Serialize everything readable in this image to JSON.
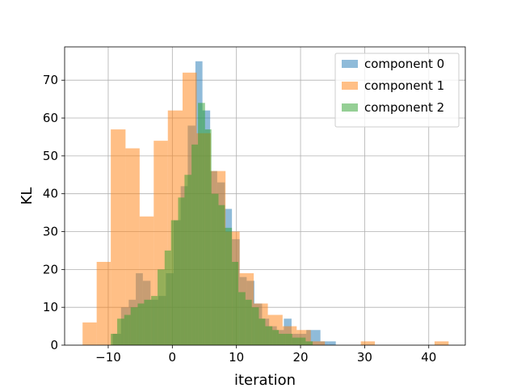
{
  "chart_data": {
    "type": "histogram",
    "xlabel": "iteration",
    "ylabel": "KL",
    "xlim": [
      -16.8,
      45.7
    ],
    "ylim": [
      0,
      78.8
    ],
    "xticks": [
      -10,
      0,
      10,
      20,
      30,
      40
    ],
    "xtick_labels": [
      "−10",
      "0",
      "10",
      "20",
      "30",
      "40"
    ],
    "yticks": [
      0,
      10,
      20,
      30,
      40,
      50,
      60,
      70
    ],
    "ytick_labels": [
      "0",
      "10",
      "20",
      "30",
      "40",
      "50",
      "60",
      "70"
    ],
    "grid": true,
    "legend_position": "top-right",
    "series": [
      {
        "name": "component 0",
        "color": "#1f77b4",
        "opacity": 0.5,
        "bins": [
          [
            -9.3,
            -8.0,
            3
          ],
          [
            -8.0,
            -6.8,
            10
          ],
          [
            -6.8,
            -5.7,
            12
          ],
          [
            -5.7,
            -4.6,
            19
          ],
          [
            -4.6,
            -3.4,
            17
          ],
          [
            -3.4,
            -2.2,
            12
          ],
          [
            -2.2,
            -1.0,
            13
          ],
          [
            -1.0,
            0.2,
            19
          ],
          [
            0.2,
            1.3,
            33
          ],
          [
            1.3,
            2.4,
            42
          ],
          [
            2.4,
            3.6,
            58
          ],
          [
            3.6,
            4.7,
            75
          ],
          [
            4.7,
            5.9,
            62
          ],
          [
            5.9,
            7.0,
            46
          ],
          [
            7.0,
            8.2,
            43
          ],
          [
            8.2,
            9.3,
            36
          ],
          [
            9.3,
            10.5,
            28
          ],
          [
            10.5,
            11.6,
            18
          ],
          [
            11.6,
            12.8,
            17
          ],
          [
            12.8,
            14.0,
            11
          ],
          [
            14.0,
            15.1,
            7
          ],
          [
            15.1,
            16.3,
            5
          ],
          [
            16.3,
            17.4,
            4
          ],
          [
            17.4,
            18.6,
            7
          ],
          [
            18.6,
            19.7,
            3
          ],
          [
            19.7,
            20.9,
            3
          ],
          [
            20.9,
            22.0,
            4
          ],
          [
            22.0,
            23.1,
            4
          ],
          [
            23.1,
            24.3,
            1
          ],
          [
            24.3,
            25.5,
            1
          ]
        ]
      },
      {
        "name": "component 1",
        "color": "#ff7f0e",
        "opacity": 0.5,
        "bins": [
          [
            -14.0,
            -11.8,
            6
          ],
          [
            -11.8,
            -9.6,
            22
          ],
          [
            -9.6,
            -7.3,
            57
          ],
          [
            -7.3,
            -5.1,
            52
          ],
          [
            -5.1,
            -2.9,
            34
          ],
          [
            -2.9,
            -0.7,
            54
          ],
          [
            -0.7,
            1.6,
            62
          ],
          [
            1.6,
            3.8,
            72
          ],
          [
            3.8,
            6.0,
            56
          ],
          [
            6.0,
            8.3,
            46
          ],
          [
            8.3,
            10.5,
            30
          ],
          [
            10.5,
            12.7,
            19
          ],
          [
            12.7,
            14.9,
            11
          ],
          [
            14.9,
            17.2,
            8
          ],
          [
            17.2,
            19.4,
            5
          ],
          [
            19.4,
            21.6,
            4
          ],
          [
            21.6,
            23.8,
            1
          ],
          [
            29.4,
            31.6,
            1
          ],
          [
            40.9,
            43.1,
            1
          ]
        ]
      },
      {
        "name": "component 2",
        "color": "#2ca02c",
        "opacity": 0.5,
        "bins": [
          [
            -9.6,
            -8.6,
            3
          ],
          [
            -8.6,
            -7.5,
            7
          ],
          [
            -7.5,
            -6.5,
            8
          ],
          [
            -6.5,
            -5.4,
            10
          ],
          [
            -5.4,
            -4.4,
            11
          ],
          [
            -4.4,
            -3.3,
            12
          ],
          [
            -3.3,
            -2.3,
            13
          ],
          [
            -2.3,
            -1.2,
            20
          ],
          [
            -1.2,
            -0.2,
            25
          ],
          [
            -0.2,
            0.9,
            33
          ],
          [
            0.9,
            1.9,
            39
          ],
          [
            1.9,
            3.0,
            45
          ],
          [
            3.0,
            4.0,
            53
          ],
          [
            4.0,
            5.1,
            64
          ],
          [
            5.1,
            6.1,
            57
          ],
          [
            6.1,
            7.2,
            40
          ],
          [
            7.2,
            8.2,
            37
          ],
          [
            8.2,
            9.3,
            31
          ],
          [
            9.3,
            10.3,
            22
          ],
          [
            10.3,
            11.4,
            14
          ],
          [
            11.4,
            12.4,
            12
          ],
          [
            12.4,
            13.5,
            10
          ],
          [
            13.5,
            14.5,
            7
          ],
          [
            14.5,
            15.6,
            5
          ],
          [
            15.6,
            16.6,
            4
          ],
          [
            16.6,
            17.7,
            3
          ],
          [
            17.7,
            18.7,
            3
          ],
          [
            18.7,
            19.8,
            2
          ],
          [
            19.8,
            20.8,
            2
          ],
          [
            20.8,
            21.9,
            1
          ]
        ]
      }
    ]
  }
}
